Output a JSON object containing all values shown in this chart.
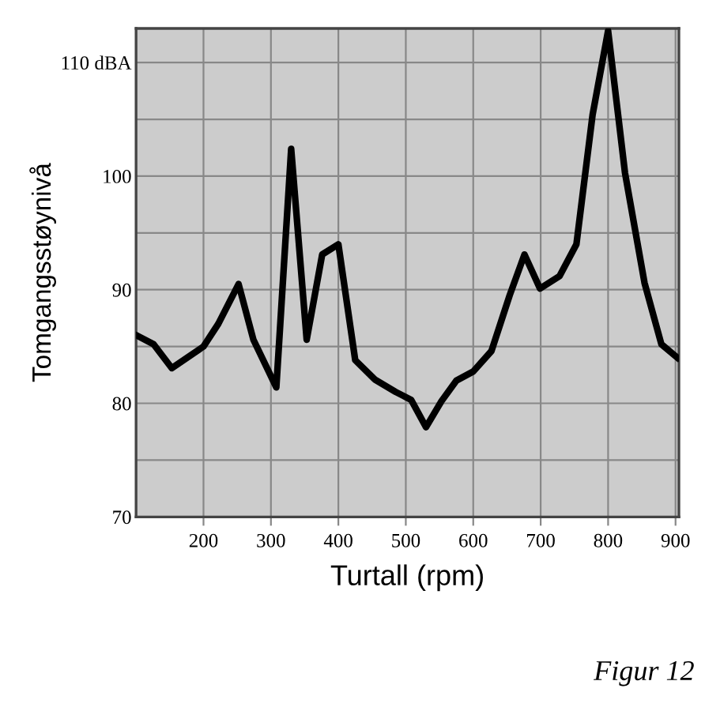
{
  "chart_data": {
    "type": "line",
    "xlabel": "Turtall (rpm)",
    "ylabel": "Tomgangsstøynivå",
    "x": [
      100,
      126,
      153,
      200,
      222,
      252,
      274,
      308,
      330,
      353,
      376,
      400,
      425,
      454,
      485,
      508,
      530,
      553,
      575,
      600,
      627,
      654,
      676,
      699,
      728,
      753,
      777,
      800,
      825,
      854,
      879,
      903
    ],
    "series": [
      {
        "color": "#000000",
        "values": [
          86,
          85.2,
          83.1,
          85,
          87,
          90.5,
          85.6,
          81.4,
          102.4,
          85.6,
          93.1,
          94,
          83.8,
          82.1,
          81,
          80.3,
          77.9,
          80.2,
          82,
          82.8,
          84.6,
          89.5,
          93.1,
          90.1,
          91.2,
          94,
          105.4,
          112.8,
          100.3,
          90.6,
          85.2,
          84
        ]
      }
    ],
    "xlim": [
      100,
      905
    ],
    "ylim": [
      70,
      113
    ],
    "xticks": [
      200,
      300,
      400,
      500,
      600,
      700,
      800,
      900
    ],
    "yticks": [
      70,
      {
        "value": 75,
        "label": null
      },
      80,
      {
        "value": 85,
        "label": null
      },
      90,
      {
        "value": 95,
        "label": null
      },
      100,
      {
        "value": 105,
        "label": null
      },
      {
        "value": 110,
        "label": "110 dBA"
      }
    ],
    "grid": true,
    "marker": "none",
    "line_style": "solid",
    "legend": false,
    "annotations": [
      "Figur 12"
    ]
  }
}
